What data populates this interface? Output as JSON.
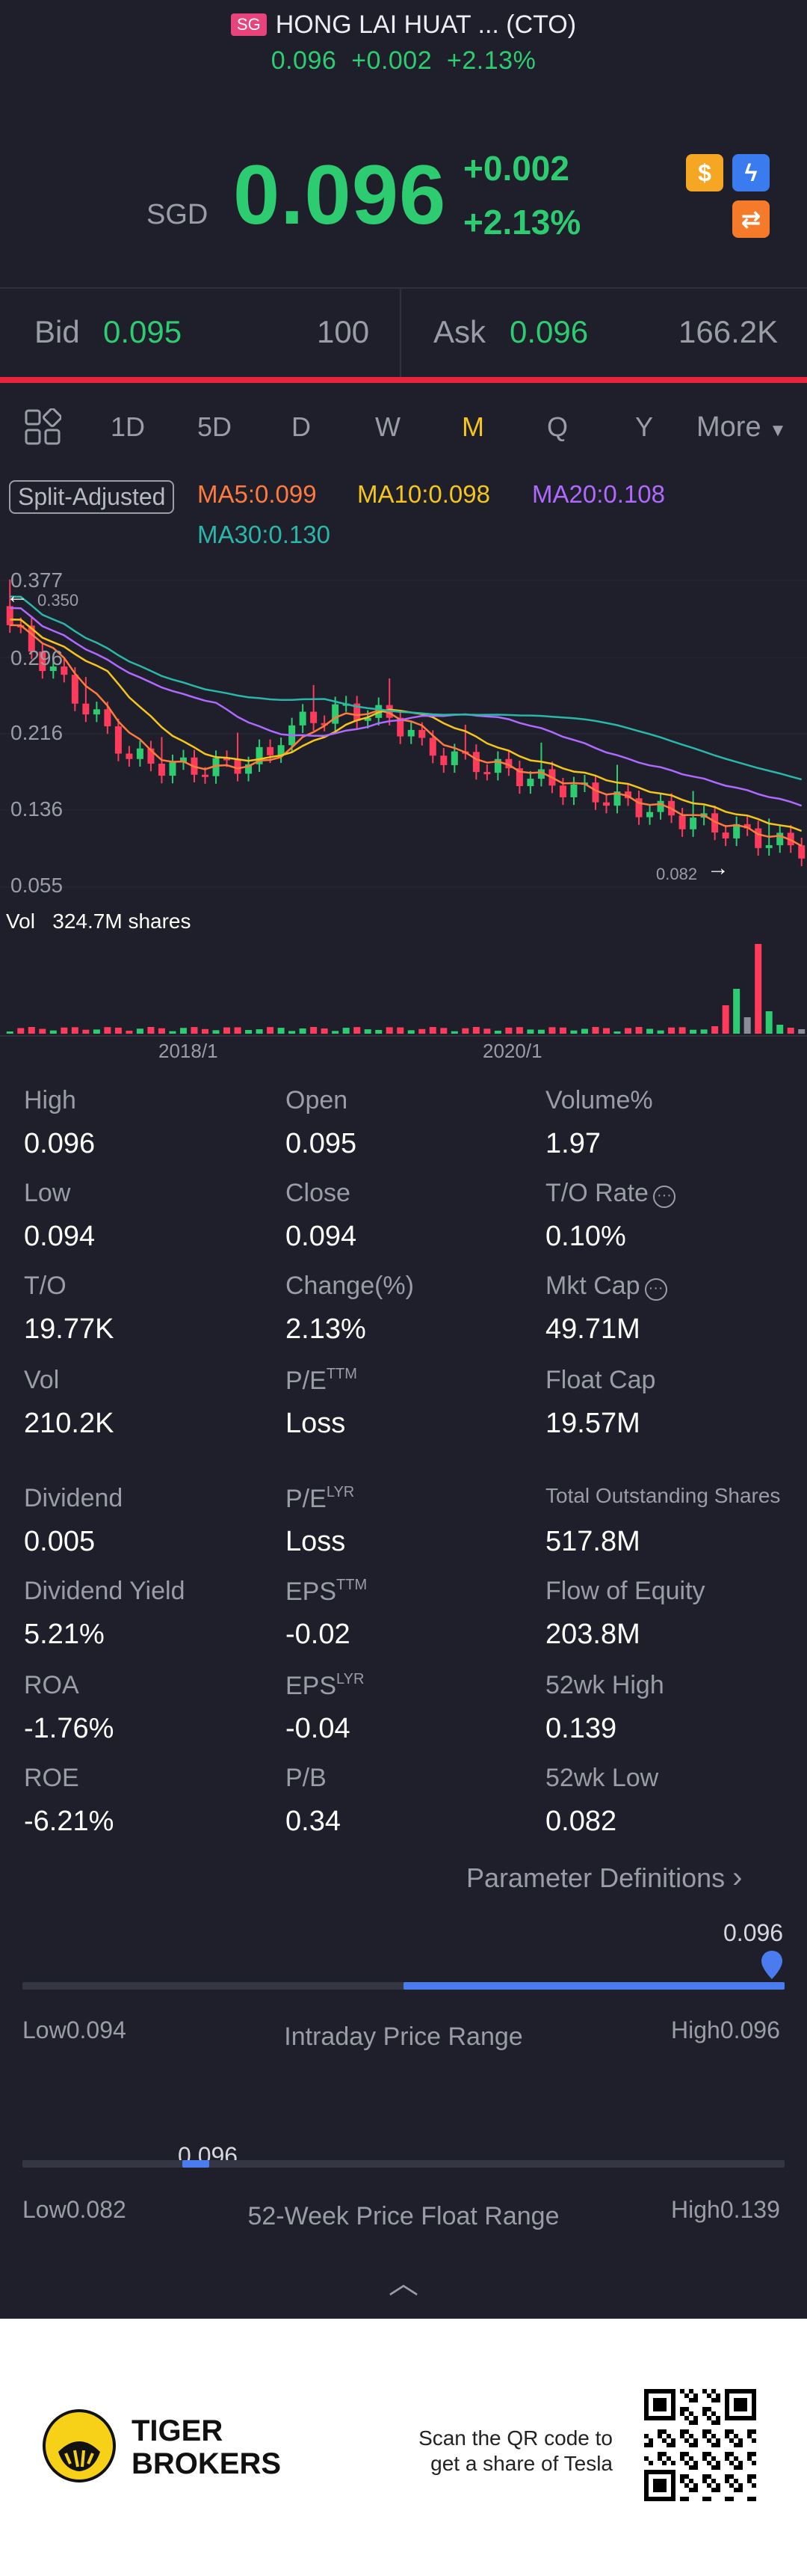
{
  "header": {
    "market_badge": "SG",
    "title": "HONG LAI HUAT ... (CTO)",
    "sub_price": "0.096",
    "sub_change": "+0.002",
    "sub_pct": "+2.13%"
  },
  "quote": {
    "currency": "SGD",
    "price": "0.096",
    "change": "+0.002",
    "pct": "+2.13%",
    "icons": [
      "dollar-icon",
      "lightning-icon",
      "exchange-icon"
    ]
  },
  "bidask": {
    "bid_label": "Bid",
    "bid_price": "0.095",
    "bid_size": "100",
    "ask_label": "Ask",
    "ask_price": "0.096",
    "ask_size": "166.2K"
  },
  "tabs": [
    "1D",
    "5D",
    "D",
    "W",
    "M",
    "Q",
    "Y",
    "More"
  ],
  "active_tab": "M",
  "indicators": {
    "adjust": "Split-Adjusted",
    "ma5": "MA5:0.099",
    "ma10": "MA10:0.098",
    "ma20": "MA20:0.108",
    "ma30": "MA30:0.130"
  },
  "colors": {
    "up": "#2ecc71",
    "down": "#ff3b5c",
    "ma5": "#ff7a3d",
    "ma10": "#f5c518",
    "ma20": "#b069ff",
    "ma30": "#2ab7a9",
    "accent": "#4a7bef"
  },
  "chart_data": {
    "type": "candlestick",
    "y_ticks": [
      "0.377",
      "0.296",
      "0.216",
      "0.136",
      "0.055"
    ],
    "high_marker": "0.350",
    "low_marker": "0.082",
    "ylim": [
      0.055,
      0.377
    ],
    "x_ticks": [
      "2018/1",
      "2020/1"
    ],
    "volume_label": "Vol",
    "volume_value": "324.7M shares"
  },
  "stats": [
    [
      {
        "label": "High",
        "value": "0.096"
      },
      {
        "label": "Open",
        "value": "0.095"
      },
      {
        "label": "Volume%",
        "value": "1.97"
      }
    ],
    [
      {
        "label": "Low",
        "value": "0.094"
      },
      {
        "label": "Close",
        "value": "0.094"
      },
      {
        "label": "T/O Rate",
        "value": "0.10%"
      }
    ],
    [
      {
        "label": "T/O",
        "value": "19.77K"
      },
      {
        "label": "Change(%)",
        "value": "2.13%"
      },
      {
        "label": "Mkt Cap",
        "value": "49.71M"
      }
    ],
    [
      {
        "label": "Vol",
        "value": "210.2K"
      },
      {
        "label": "P/E",
        "sup": "TTM",
        "value": "Loss"
      },
      {
        "label": "Float Cap",
        "value": "19.57M"
      }
    ],
    [
      {
        "label": "Dividend",
        "value": "0.005"
      },
      {
        "label": "P/E",
        "sup": "LYR",
        "value": "Loss"
      },
      {
        "label": "Total Outstanding Shares",
        "value": "517.8M"
      }
    ],
    [
      {
        "label": "Dividend Yield",
        "value": "5.21%"
      },
      {
        "label": "EPS",
        "sup": "TTM",
        "value": "-0.02"
      },
      {
        "label": "Flow of Equity",
        "value": "203.8M"
      }
    ],
    [
      {
        "label": "ROA",
        "value": "-1.76%"
      },
      {
        "label": "EPS",
        "sup": "LYR",
        "value": "-0.04"
      },
      {
        "label": "52wk High",
        "value": "0.139"
      }
    ],
    [
      {
        "label": "ROE",
        "value": "-6.21%"
      },
      {
        "label": "P/B",
        "value": "0.34"
      },
      {
        "label": "52wk Low",
        "value": "0.082"
      }
    ]
  ],
  "param_link": "Parameter Definitions",
  "intraday": {
    "title": "Intraday Price Range",
    "low": "Low0.094",
    "high": "High0.096",
    "current": "0.096",
    "position": 1.0
  },
  "week52": {
    "title": "52-Week Price Float Range",
    "low": "Low0.082",
    "high": "High0.139",
    "current": "0.096",
    "position": 0.246
  },
  "footer": {
    "brand_line1": "TIGER",
    "brand_line2": "BROKERS",
    "qr_line1": "Scan the QR code to",
    "qr_line2": "get a share of Tesla"
  }
}
